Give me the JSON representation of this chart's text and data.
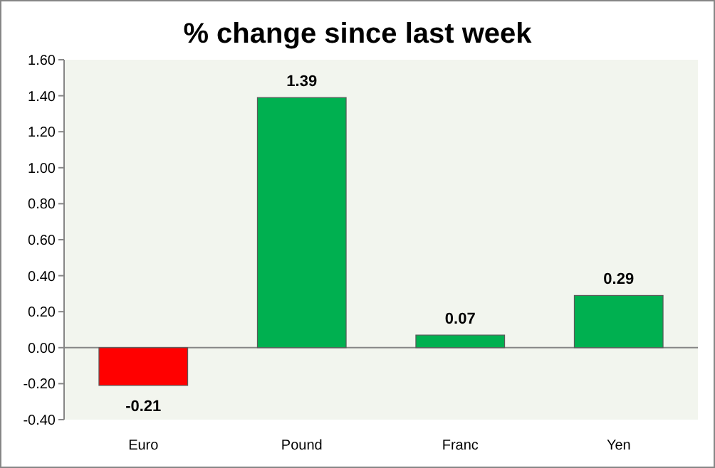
{
  "chart_data": {
    "type": "bar",
    "title": "% change since last week",
    "categories": [
      "Euro",
      "Pound",
      "Franc",
      "Yen"
    ],
    "values": [
      -0.21,
      1.39,
      0.07,
      0.29
    ],
    "colors": [
      "#ff0000",
      "#00b050",
      "#00b050",
      "#00b050"
    ],
    "ylim": [
      -0.4,
      1.6
    ],
    "yticks": [
      {
        "value": -0.4,
        "label": "-0.40"
      },
      {
        "value": -0.2,
        "label": "-0.20"
      },
      {
        "value": 0,
        "label": "0.00"
      },
      {
        "value": 0.2,
        "label": "0.20"
      },
      {
        "value": 0.4,
        "label": "0.40"
      },
      {
        "value": 0.6,
        "label": "0.60"
      },
      {
        "value": 0.8,
        "label": "0.80"
      },
      {
        "value": 1.0,
        "label": "1.00"
      },
      {
        "value": 1.2,
        "label": "1.20"
      },
      {
        "value": 1.4,
        "label": "1.40"
      },
      {
        "value": 1.6,
        "label": "1.60"
      }
    ],
    "data_labels": true
  }
}
